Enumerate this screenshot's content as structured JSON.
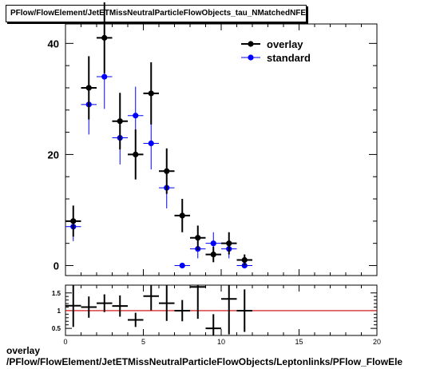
{
  "header": {
    "title": "PFlow/FlowElement/JetETMissNeutralParticleFlowObjects_tau_NMatchedNFE"
  },
  "footer": {
    "line1": "overlay",
    "line2": "/PFlow/FlowElement/JetETMissNeutralParticleFlowObjects/Leptonlinks/PFlow_FlowEle"
  },
  "chart_data": [
    {
      "type": "scatter",
      "panel": "main",
      "xlim": [
        0,
        20
      ],
      "ylim": [
        -1.8,
        43.5
      ],
      "yticks": [
        0,
        20,
        40
      ],
      "grid": false,
      "legend_position": "top-right",
      "series": [
        {
          "name": "overlay",
          "color": "#000000",
          "x": [
            0.5,
            1.5,
            2.5,
            3.5,
            4.5,
            5.5,
            6.5,
            7.5,
            8.5,
            9.5,
            10.5,
            11.5
          ],
          "y": [
            8,
            32,
            41,
            26,
            20,
            31,
            17,
            9,
            5,
            2,
            4,
            1
          ],
          "yerr": [
            2.8,
            5.7,
            6.4,
            5.1,
            4.5,
            5.6,
            4.1,
            3.0,
            2.2,
            1.4,
            2.0,
            1.0
          ]
        },
        {
          "name": "standard",
          "color": "#0000ff",
          "x": [
            0.5,
            1.5,
            2.5,
            3.5,
            4.5,
            5.5,
            6.5,
            7.5,
            8.5,
            9.5,
            10.5,
            11.5
          ],
          "y": [
            7,
            29,
            34,
            23,
            27,
            22,
            14,
            0,
            3,
            4,
            3,
            0
          ],
          "yerr": [
            2.6,
            5.4,
            5.8,
            4.8,
            5.2,
            4.7,
            3.7,
            0,
            1.7,
            2.0,
            1.7,
            0
          ]
        }
      ]
    },
    {
      "type": "scatter",
      "panel": "ratio",
      "xlim": [
        0,
        20
      ],
      "ylim": [
        0.3,
        1.72
      ],
      "xticks": [
        0,
        5,
        10,
        15,
        20
      ],
      "yticks": [
        0.5,
        1,
        1.5
      ],
      "reference_line": 1,
      "reference_color": "#cc0000",
      "series": [
        {
          "color": "#000000",
          "x": [
            0.5,
            1.5,
            2.5,
            3.5,
            4.5,
            5.5,
            6.5,
            7.5,
            8.5,
            9.5,
            10.5,
            11.5
          ],
          "y": [
            1.14,
            1.1,
            1.21,
            1.13,
            0.74,
            1.41,
            1.21,
            1.0,
            1.67,
            0.5,
            1.33,
            1.0
          ],
          "yerr": [
            0.6,
            0.3,
            0.25,
            0.3,
            0.2,
            0.4,
            0.5,
            0.3,
            0.9,
            0.4,
            1.0,
            0.6
          ]
        }
      ]
    }
  ]
}
